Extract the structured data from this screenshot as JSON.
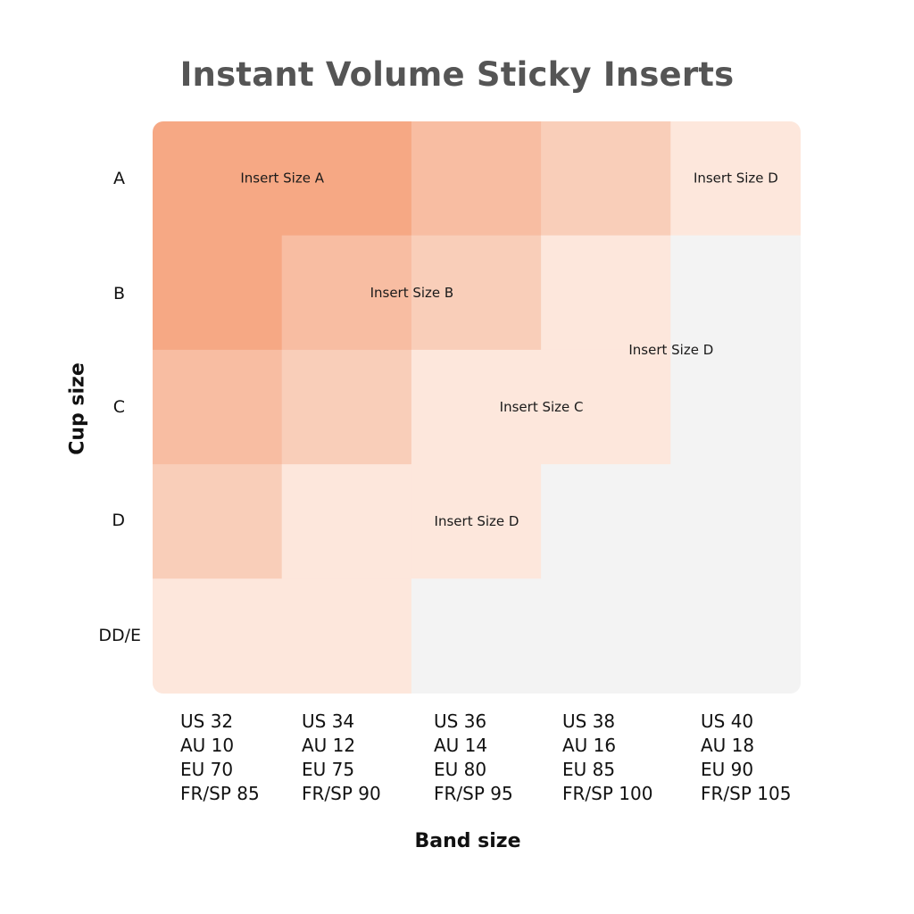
{
  "title": "Instant Volume Sticky Inserts",
  "y_axis_label": "Cup size",
  "x_axis_label": "Band size",
  "cup_sizes": [
    "A",
    "B",
    "C",
    "D",
    "DD/E"
  ],
  "band_sizes": [
    {
      "us": "US 32",
      "au": "AU 10",
      "eu": "EU 70",
      "frsp": "FR/SP 85"
    },
    {
      "us": "US 34",
      "au": "AU 12",
      "eu": "EU 75",
      "frsp": "FR/SP 90"
    },
    {
      "us": "US 36",
      "au": "AU 14",
      "eu": "EU 80",
      "frsp": "FR/SP 95"
    },
    {
      "us": "US 38",
      "au": "AU 16",
      "eu": "EU 85",
      "frsp": "FR/SP 100"
    },
    {
      "us": "US 40",
      "au": "AU 18",
      "eu": "EU 90",
      "frsp": "FR/SP 105"
    }
  ],
  "chart_data": {
    "type": "heatmap",
    "title": "Instant Volume Sticky Inserts",
    "xlabel": "Band size",
    "ylabel": "Cup size",
    "columns": [
      "US 32",
      "US 34",
      "US 36",
      "US 38",
      "US 40"
    ],
    "rows": [
      "A",
      "B",
      "C",
      "D",
      "DD/E"
    ],
    "insert_sizes": [
      [
        "A",
        "A",
        "B",
        "C",
        "D"
      ],
      [
        "A",
        "B",
        "C",
        "D",
        null
      ],
      [
        "B",
        "C",
        "D",
        "D",
        null
      ],
      [
        "C",
        "D",
        "D",
        null,
        null
      ],
      [
        "D",
        "D",
        null,
        null,
        null
      ]
    ],
    "zone_labels": [
      {
        "label": "Insert Size A",
        "row": 0,
        "col": 0.5
      },
      {
        "label": "Insert Size B",
        "row": 1,
        "col": 1.5
      },
      {
        "label": "Insert Size C",
        "row": 2,
        "col": 2.5
      },
      {
        "label": "Insert Size D",
        "row": 3,
        "col": 2
      },
      {
        "label": "Insert Size D",
        "row": 1.5,
        "col": 3.5
      },
      {
        "label": "Insert Size D",
        "row": 0,
        "col": 4
      }
    ],
    "colors": {
      "A": "#f6a884",
      "B": "#f8bda2",
      "C": "#f9ceb9",
      "D": "#fde7dc",
      "none": "#f3f3f3"
    }
  }
}
